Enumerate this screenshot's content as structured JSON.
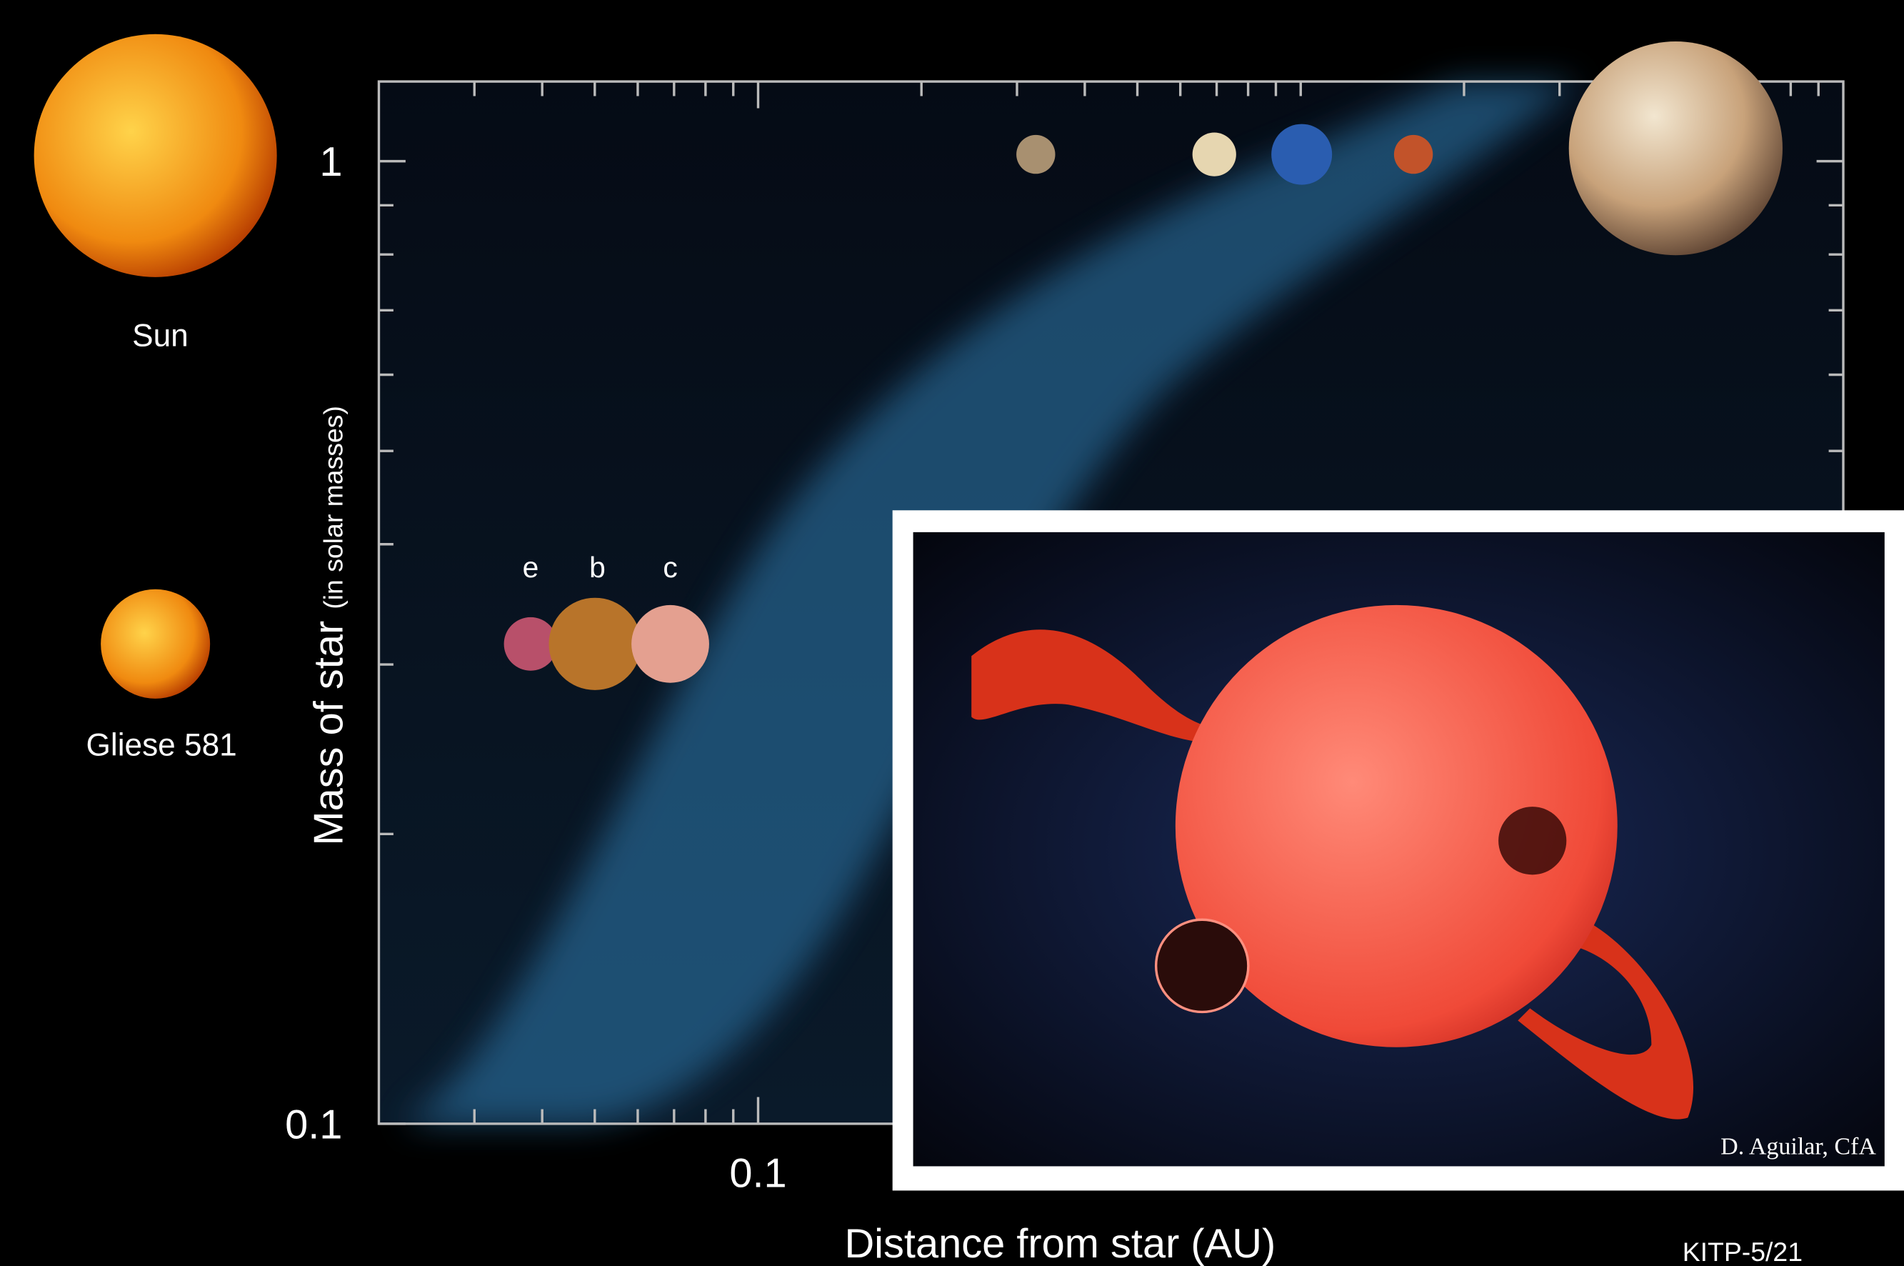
{
  "chart_data": {
    "type": "log-log",
    "xlabel": "Distance from star (AU)",
    "ylabel": "Mass of star",
    "ylabel_note": "(in solar masses)",
    "xscale": "log",
    "yscale": "log",
    "xlim": [
      0.02,
      10
    ],
    "ylim": [
      0.1,
      1.21
    ],
    "xticks": [
      0.1
    ],
    "yticks": [
      0.1,
      1
    ],
    "xminorticks": [
      0.03,
      0.04,
      0.05,
      0.06,
      0.07,
      0.08,
      0.09,
      0.2,
      0.3,
      0.4,
      0.5,
      0.6,
      0.7,
      0.8,
      0.9,
      1,
      2,
      3,
      4,
      5,
      6,
      7,
      8,
      9
    ],
    "yminorticks": [
      0.2,
      0.3,
      0.4,
      0.5,
      0.6,
      0.7,
      0.8,
      0.9
    ]
  },
  "stars": [
    "Sun",
    "Gliese 581"
  ],
  "planets": [
    "e",
    "b",
    "c"
  ],
  "credit": "D. Aguilar, CfA",
  "footer": "KITP-5/21"
}
